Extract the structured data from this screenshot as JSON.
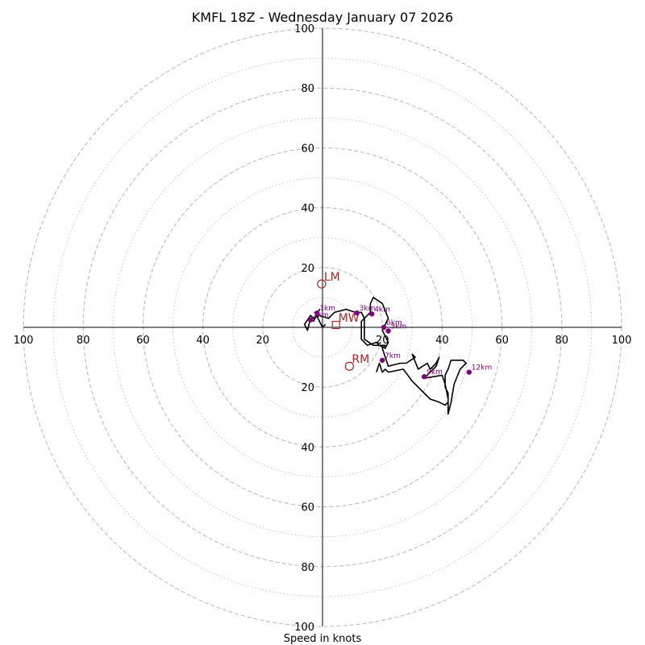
{
  "chart_data": {
    "type": "hodograph",
    "title": "KMFL 18Z - Wednesday January 07 2026",
    "xlabel": "Speed in knots",
    "ring_labels": [
      20,
      40,
      60,
      80,
      100
    ],
    "major_rings": [
      20,
      40,
      60,
      80,
      100
    ],
    "minor_rings": [
      10,
      30,
      50,
      70,
      90
    ],
    "max_speed": 100,
    "colors": {
      "trace": "#000000",
      "heights": "#800080",
      "motions": "#b22222",
      "grid": "#bbbbbb",
      "axes": "#000000"
    },
    "trace_units": "knots (u east, v north)",
    "trace": [
      [
        1,
        1
      ],
      [
        0,
        0
      ],
      [
        -1,
        2
      ],
      [
        -2,
        4
      ],
      [
        -1,
        6
      ],
      [
        -3,
        2
      ],
      [
        -4,
        3
      ],
      [
        -5,
        -1
      ],
      [
        -6,
        1
      ],
      [
        -4,
        4
      ],
      [
        -3,
        3
      ],
      [
        -1,
        4
      ],
      [
        2,
        3
      ],
      [
        4,
        5
      ],
      [
        8,
        6
      ],
      [
        11,
        5
      ],
      [
        13,
        5
      ],
      [
        14,
        3
      ],
      [
        13,
        2
      ],
      [
        13,
        0
      ],
      [
        13,
        -4
      ],
      [
        15,
        -6
      ],
      [
        18,
        -5
      ],
      [
        19,
        -6
      ],
      [
        21,
        -7
      ],
      [
        22,
        -5
      ],
      [
        20,
        -1
      ],
      [
        22,
        3
      ],
      [
        20,
        8
      ],
      [
        17,
        10
      ],
      [
        16,
        8
      ],
      [
        16,
        5
      ],
      [
        15,
        4
      ],
      [
        14,
        3
      ],
      [
        14,
        0
      ],
      [
        14,
        -4
      ],
      [
        17,
        -6
      ],
      [
        21,
        -6
      ],
      [
        20,
        -7
      ],
      [
        21,
        -10
      ],
      [
        22,
        -13
      ],
      [
        26,
        -12
      ],
      [
        28,
        -12
      ],
      [
        31,
        -10
      ],
      [
        30,
        -9
      ],
      [
        32,
        -14
      ],
      [
        35,
        -12
      ],
      [
        36,
        -14
      ],
      [
        38,
        -12
      ],
      [
        39,
        -10
      ],
      [
        38,
        -13
      ],
      [
        36,
        -15
      ],
      [
        34,
        -17
      ],
      [
        40,
        -16
      ],
      [
        41,
        -19
      ],
      [
        42,
        -24
      ],
      [
        42,
        -29
      ],
      [
        43,
        -25
      ],
      [
        44,
        -19
      ],
      [
        46,
        -14
      ],
      [
        48,
        -12
      ],
      [
        47,
        -11
      ],
      [
        45,
        -11
      ],
      [
        43,
        -11
      ],
      [
        42,
        -14
      ],
      [
        41,
        -16
      ],
      [
        41,
        -20
      ],
      [
        42,
        -22
      ],
      [
        42,
        -25
      ],
      [
        41,
        -26
      ],
      [
        39,
        -25
      ],
      [
        36,
        -24
      ],
      [
        30,
        -18
      ],
      [
        27,
        -14
      ],
      [
        22,
        -15
      ],
      [
        21,
        -14
      ],
      [
        20,
        -15
      ],
      [
        19,
        -12
      ],
      [
        18,
        -15
      ]
    ],
    "height_markers": [
      {
        "label": "1km",
        "u": -1.8,
        "v": 4.8
      },
      {
        "label": "2km",
        "u": -4,
        "v": 2.5
      },
      {
        "label": "3km",
        "u": 11.5,
        "v": 4.8
      },
      {
        "label": "4km",
        "u": 16.5,
        "v": 4.5
      },
      {
        "label": "5km",
        "u": 22,
        "v": -1.2
      },
      {
        "label": "6km",
        "u": 20.5,
        "v": 0
      },
      {
        "label": "7km",
        "u": 20,
        "v": -11
      },
      {
        "label": "9km",
        "u": 34,
        "v": -16.5
      },
      {
        "label": "12km",
        "u": 49,
        "v": -15
      }
    ],
    "storm_motions": [
      {
        "label": "LM",
        "u": -0.3,
        "v": 14.5,
        "marker": "circle"
      },
      {
        "label": "RM",
        "u": 9,
        "v": -13,
        "marker": "circle"
      },
      {
        "label": "MW",
        "u": 4.5,
        "v": 0.8,
        "marker": "square"
      }
    ]
  }
}
